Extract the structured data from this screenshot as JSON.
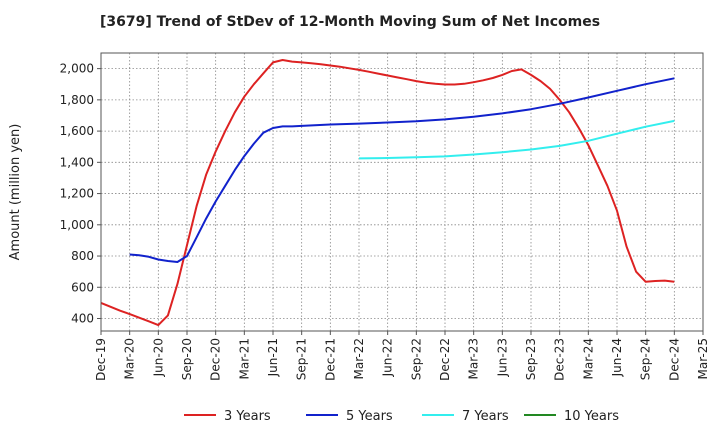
{
  "chart_data": {
    "type": "line",
    "title": "[3679]  Trend of StDev of 12-Month Moving Sum of Net Incomes",
    "ylabel": "Amount (million yen)",
    "xlabel": "",
    "ylim": [
      320,
      2100
    ],
    "yticks": [
      400,
      600,
      800,
      1000,
      1200,
      1400,
      1600,
      1800,
      2000
    ],
    "ytick_labels": [
      "400",
      "600",
      "800",
      "1,000",
      "1,200",
      "1,400",
      "1,600",
      "1,800",
      "2,000"
    ],
    "xlim": [
      "2019-12",
      "2025-03"
    ],
    "xticks": [
      "2019-12",
      "2020-03",
      "2020-06",
      "2020-09",
      "2020-12",
      "2021-03",
      "2021-06",
      "2021-09",
      "2021-12",
      "2022-03",
      "2022-06",
      "2022-09",
      "2022-12",
      "2023-03",
      "2023-06",
      "2023-09",
      "2023-12",
      "2024-03",
      "2024-06",
      "2024-09",
      "2024-12",
      "2025-03"
    ],
    "xtick_labels": [
      "Dec-19",
      "Mar-20",
      "Jun-20",
      "Sep-20",
      "Dec-20",
      "Mar-21",
      "Jun-21",
      "Sep-21",
      "Dec-21",
      "Mar-22",
      "Jun-22",
      "Sep-22",
      "Dec-22",
      "Mar-23",
      "Jun-23",
      "Sep-23",
      "Dec-23",
      "Mar-24",
      "Jun-24",
      "Sep-24",
      "Dec-24",
      "Mar-25"
    ],
    "grid": true,
    "legend_position": "bottom",
    "series": [
      {
        "name": "3 Years",
        "color": "#dd2222",
        "x": [
          "2019-12",
          "2020-01",
          "2020-02",
          "2020-03",
          "2020-04",
          "2020-05",
          "2020-06",
          "2020-07",
          "2020-08",
          "2020-09",
          "2020-10",
          "2020-11",
          "2020-12",
          "2021-01",
          "2021-02",
          "2021-03",
          "2021-04",
          "2021-05",
          "2021-06",
          "2021-07",
          "2021-08",
          "2021-09",
          "2021-10",
          "2021-11",
          "2021-12",
          "2022-01",
          "2022-02",
          "2022-03",
          "2022-04",
          "2022-05",
          "2022-06",
          "2022-07",
          "2022-08",
          "2022-09",
          "2022-10",
          "2022-11",
          "2022-12",
          "2023-01",
          "2023-02",
          "2023-03",
          "2023-04",
          "2023-05",
          "2023-06",
          "2023-07",
          "2023-08",
          "2023-09",
          "2023-10",
          "2023-11",
          "2023-12",
          "2024-01",
          "2024-02",
          "2024-03",
          "2024-04",
          "2024-05",
          "2024-06",
          "2024-07",
          "2024-08",
          "2024-09",
          "2024-10",
          "2024-11",
          "2024-12"
        ],
        "y": [
          500,
          475,
          450,
          428,
          405,
          382,
          358,
          420,
          620,
          870,
          1120,
          1320,
          1470,
          1600,
          1720,
          1820,
          1900,
          1970,
          2040,
          2055,
          2045,
          2040,
          2035,
          2028,
          2020,
          2012,
          2002,
          1992,
          1980,
          1968,
          1956,
          1944,
          1932,
          1920,
          1910,
          1903,
          1898,
          1898,
          1903,
          1913,
          1925,
          1940,
          1960,
          1985,
          1995,
          1960,
          1920,
          1870,
          1800,
          1720,
          1620,
          1510,
          1380,
          1250,
          1090,
          860,
          700,
          635,
          640,
          643,
          635
        ]
      },
      {
        "name": "5 Years",
        "color": "#1122cc",
        "x": [
          "2020-03",
          "2020-04",
          "2020-05",
          "2020-06",
          "2020-07",
          "2020-08",
          "2020-09",
          "2020-10",
          "2020-11",
          "2020-12",
          "2021-01",
          "2021-02",
          "2021-03",
          "2021-04",
          "2021-05",
          "2021-06",
          "2021-07",
          "2021-08",
          "2021-09",
          "2021-12",
          "2022-03",
          "2022-06",
          "2022-09",
          "2022-12",
          "2023-03",
          "2023-06",
          "2023-09",
          "2023-12",
          "2024-03",
          "2024-06",
          "2024-09",
          "2024-12"
        ],
        "y": [
          810,
          805,
          795,
          778,
          768,
          762,
          800,
          920,
          1040,
          1150,
          1250,
          1350,
          1440,
          1520,
          1590,
          1620,
          1630,
          1630,
          1633,
          1642,
          1648,
          1655,
          1663,
          1675,
          1692,
          1713,
          1740,
          1775,
          1815,
          1858,
          1900,
          1938
        ]
      },
      {
        "name": "7 Years",
        "color": "#33eeee",
        "x": [
          "2022-03",
          "2022-06",
          "2022-09",
          "2022-12",
          "2023-03",
          "2023-06",
          "2023-09",
          "2023-12",
          "2024-03",
          "2024-06",
          "2024-09",
          "2024-12"
        ],
        "y": [
          1425,
          1428,
          1432,
          1438,
          1450,
          1465,
          1482,
          1505,
          1538,
          1583,
          1628,
          1665
        ]
      },
      {
        "name": "10 Years",
        "color": "#228822",
        "x": [],
        "y": []
      }
    ]
  }
}
